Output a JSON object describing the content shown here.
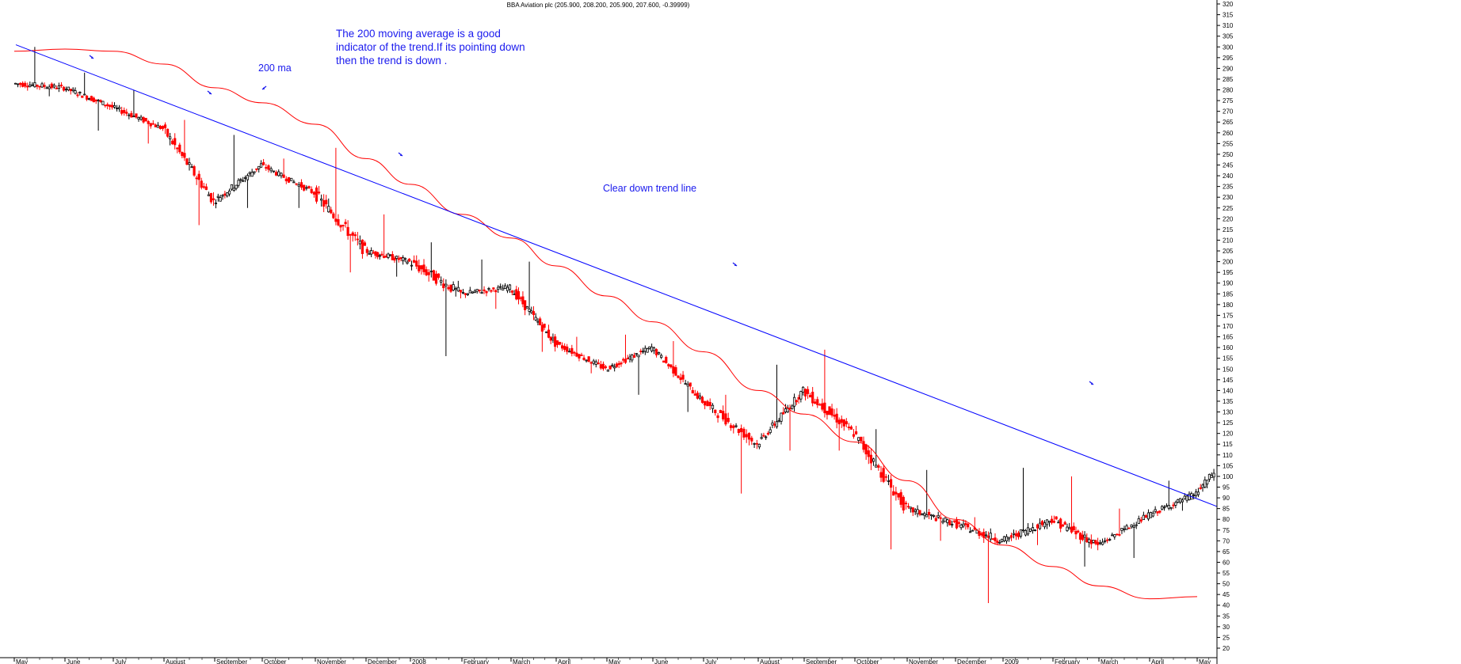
{
  "chart_data": {
    "type": "candlestick",
    "title": "BBA Aviation plc (205.900, 208.200, 205.900, 207.600, -0.39999)",
    "y_axis": {
      "range": [
        20,
        320
      ],
      "step": 5,
      "position": "right"
    },
    "x_axis": {
      "labels": [
        "May",
        "June",
        "July",
        "August",
        "September",
        "October",
        "November",
        "December",
        "2008",
        "February",
        "March",
        "April",
        "May",
        "June",
        "July",
        "August",
        "September",
        "October",
        "November",
        "December",
        "2009",
        "February",
        "March",
        "April",
        "May"
      ]
    },
    "colors": {
      "candle_up": "#000000",
      "candle_down": "#ff0000",
      "moving_average": "#ff0000",
      "trend_line": "#0000ff",
      "annotation": "#1a1aee"
    },
    "series": [
      {
        "name": "200 ma",
        "kind": "moving_average",
        "points": [
          {
            "x": "May 2007",
            "y": 298
          },
          {
            "x": "June 2007",
            "y": 299
          },
          {
            "x": "July 2007",
            "y": 298
          },
          {
            "x": "August 2007",
            "y": 292
          },
          {
            "x": "September 2007",
            "y": 281
          },
          {
            "x": "October 2007",
            "y": 274
          },
          {
            "x": "November 2007",
            "y": 264
          },
          {
            "x": "December 2007",
            "y": 248
          },
          {
            "x": "January 2008",
            "y": 236
          },
          {
            "x": "February 2008",
            "y": 222
          },
          {
            "x": "March 2008",
            "y": 211
          },
          {
            "x": "April 2008",
            "y": 198
          },
          {
            "x": "May 2008",
            "y": 184
          },
          {
            "x": "June 2008",
            "y": 172
          },
          {
            "x": "July 2008",
            "y": 158
          },
          {
            "x": "August 2008",
            "y": 140
          },
          {
            "x": "September 2008",
            "y": 129
          },
          {
            "x": "October 2008",
            "y": 116
          },
          {
            "x": "November 2008",
            "y": 98
          },
          {
            "x": "December 2008",
            "y": 80
          },
          {
            "x": "January 2009",
            "y": 68
          },
          {
            "x": "February 2009",
            "y": 58
          },
          {
            "x": "March 2009",
            "y": 49
          },
          {
            "x": "April 2009",
            "y": 43
          },
          {
            "x": "May 2009",
            "y": 44
          }
        ]
      },
      {
        "name": "Clear down trend line",
        "kind": "trend_line",
        "points": [
          {
            "x": "May 2007",
            "y": 301
          },
          {
            "x": "May 2009",
            "y": 86
          }
        ]
      },
      {
        "name": "BBA Aviation plc",
        "kind": "price_monthly_approx",
        "points": [
          {
            "x": "May 2007",
            "open": 283,
            "high": 300,
            "low": 277,
            "close": 281
          },
          {
            "x": "June 2007",
            "open": 281,
            "high": 288,
            "low": 261,
            "close": 272
          },
          {
            "x": "July 2007",
            "open": 272,
            "high": 280,
            "low": 255,
            "close": 262
          },
          {
            "x": "August 2007",
            "open": 262,
            "high": 266,
            "low": 217,
            "close": 228
          },
          {
            "x": "September 2007",
            "open": 228,
            "high": 259,
            "low": 225,
            "close": 245
          },
          {
            "x": "October 2007",
            "open": 245,
            "high": 248,
            "low": 225,
            "close": 232
          },
          {
            "x": "November 2007",
            "open": 232,
            "high": 253,
            "low": 195,
            "close": 205
          },
          {
            "x": "December 2007",
            "open": 205,
            "high": 222,
            "low": 193,
            "close": 200
          },
          {
            "x": "January 2008",
            "open": 200,
            "high": 209,
            "low": 156,
            "close": 185
          },
          {
            "x": "February 2008",
            "open": 185,
            "high": 201,
            "low": 178,
            "close": 188
          },
          {
            "x": "March 2008",
            "open": 188,
            "high": 200,
            "low": 158,
            "close": 162
          },
          {
            "x": "April 2008",
            "open": 162,
            "high": 165,
            "low": 148,
            "close": 150
          },
          {
            "x": "May 2008",
            "open": 150,
            "high": 166,
            "low": 138,
            "close": 160
          },
          {
            "x": "June 2008",
            "open": 160,
            "high": 163,
            "low": 130,
            "close": 135
          },
          {
            "x": "July 2008",
            "open": 135,
            "high": 138,
            "low": 92,
            "close": 115
          },
          {
            "x": "August 2008",
            "open": 115,
            "high": 152,
            "low": 112,
            "close": 140
          },
          {
            "x": "September 2008",
            "open": 140,
            "high": 159,
            "low": 112,
            "close": 120
          },
          {
            "x": "October 2008",
            "open": 120,
            "high": 122,
            "low": 66,
            "close": 85
          },
          {
            "x": "November 2008",
            "open": 85,
            "high": 103,
            "low": 70,
            "close": 78
          },
          {
            "x": "December 2008",
            "open": 78,
            "high": 81,
            "low": 41,
            "close": 70
          },
          {
            "x": "January 2009",
            "open": 70,
            "high": 104,
            "low": 68,
            "close": 80
          },
          {
            "x": "February 2009",
            "open": 80,
            "high": 100,
            "low": 58,
            "close": 68
          },
          {
            "x": "March 2009",
            "open": 68,
            "high": 85,
            "low": 62,
            "close": 82
          },
          {
            "x": "April 2009",
            "open": 82,
            "high": 98,
            "low": 84,
            "close": 92
          },
          {
            "x": "May 2009",
            "open": 92,
            "high": 122,
            "low": 88,
            "close": 118
          }
        ]
      }
    ],
    "annotations": [
      "The 200 moving average is a good",
      "indicator of the trend.If its pointing down",
      "then the trend is down .",
      "200 ma",
      "Clear down trend line"
    ],
    "grid": false,
    "legend": "none"
  }
}
